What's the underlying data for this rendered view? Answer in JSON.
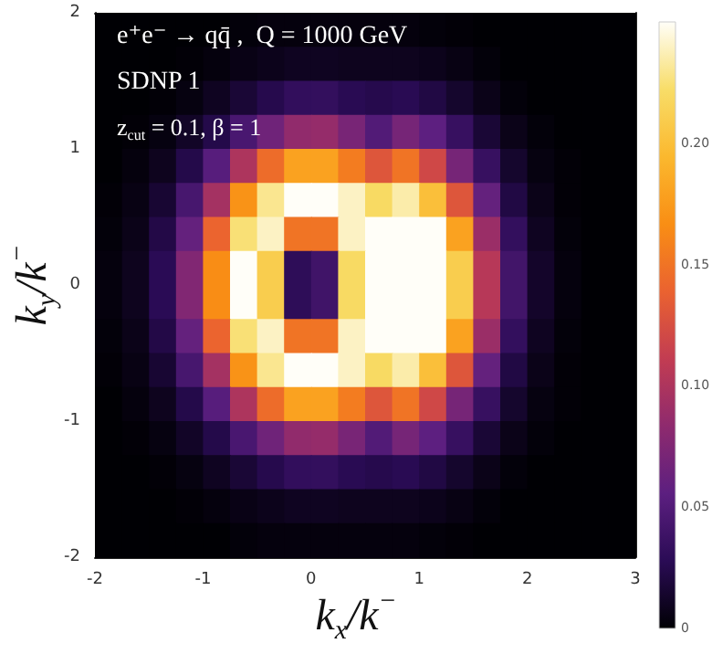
{
  "chart_data": {
    "type": "heatmap",
    "title": "e⁺e⁻ → qq̄ ,  Q = 1000 GeV",
    "subtitle": "SDNP 1",
    "annotations": [
      "z$_{cut}$ = 0.1, β = 1"
    ],
    "xlabel": "k$_{x}$/k$^{−}$",
    "ylabel": "k$_{y}$/k$^{−}$",
    "x": [
      -1.875,
      -1.625,
      -1.375,
      -1.125,
      -0.875,
      -0.625,
      -0.375,
      -0.125,
      0.125,
      0.375,
      0.625,
      0.875,
      1.125,
      1.375,
      1.625,
      1.875,
      2.125,
      2.375,
      2.625,
      2.875
    ],
    "y": [
      1.875,
      1.625,
      1.375,
      1.125,
      0.875,
      0.625,
      0.375,
      0.125,
      -0.125,
      -0.375,
      -0.625,
      -0.875,
      -1.125,
      -1.375,
      -1.625,
      -1.875
    ],
    "cells": [
      [
        0,
        0,
        0,
        0,
        0,
        0.002,
        0.003,
        0.003,
        0.003,
        0.003,
        0.003,
        0.003,
        0.002,
        0.001,
        0,
        0,
        0,
        0,
        0,
        0
      ],
      [
        0,
        0,
        0,
        0.001,
        0.003,
        0.006,
        0.008,
        0.01,
        0.01,
        0.009,
        0.009,
        0.009,
        0.008,
        0.005,
        0.002,
        0,
        0,
        0,
        0,
        0
      ],
      [
        0,
        0,
        0.001,
        0.004,
        0.01,
        0.017,
        0.025,
        0.032,
        0.033,
        0.027,
        0.025,
        0.027,
        0.022,
        0.014,
        0.007,
        0.002,
        0,
        0,
        0,
        0
      ],
      [
        0,
        0.001,
        0.004,
        0.012,
        0.024,
        0.045,
        0.066,
        0.085,
        0.087,
        0.071,
        0.05,
        0.07,
        0.056,
        0.035,
        0.017,
        0.007,
        0.002,
        0,
        0,
        0
      ],
      [
        0,
        0.003,
        0.009,
        0.024,
        0.053,
        0.1,
        0.145,
        0.18,
        0.18,
        0.155,
        0.13,
        0.15,
        0.12,
        0.07,
        0.035,
        0.014,
        0.004,
        0.001,
        0,
        0
      ],
      [
        0.001,
        0.005,
        0.016,
        0.044,
        0.095,
        0.17,
        0.23,
        0.25,
        0.25,
        0.24,
        0.22,
        0.235,
        0.2,
        0.13,
        0.06,
        0.022,
        0.007,
        0.001,
        0,
        0
      ],
      [
        0.002,
        0.007,
        0.023,
        0.06,
        0.14,
        0.225,
        0.24,
        0.15,
        0.15,
        0.24,
        0.25,
        0.25,
        0.25,
        0.18,
        0.09,
        0.033,
        0.01,
        0.002,
        0,
        0
      ],
      [
        0.003,
        0.009,
        0.028,
        0.076,
        0.166,
        0.25,
        0.21,
        0.03,
        0.04,
        0.22,
        0.25,
        0.25,
        0.25,
        0.21,
        0.105,
        0.041,
        0.013,
        0.003,
        0,
        0
      ],
      [
        0.003,
        0.009,
        0.028,
        0.076,
        0.166,
        0.25,
        0.21,
        0.03,
        0.04,
        0.22,
        0.25,
        0.25,
        0.25,
        0.21,
        0.105,
        0.041,
        0.013,
        0.003,
        0,
        0
      ],
      [
        0.002,
        0.007,
        0.023,
        0.06,
        0.14,
        0.225,
        0.24,
        0.15,
        0.15,
        0.24,
        0.25,
        0.25,
        0.25,
        0.18,
        0.09,
        0.033,
        0.01,
        0.002,
        0,
        0
      ],
      [
        0.001,
        0.005,
        0.016,
        0.044,
        0.095,
        0.17,
        0.23,
        0.25,
        0.25,
        0.24,
        0.22,
        0.235,
        0.2,
        0.13,
        0.06,
        0.022,
        0.007,
        0.001,
        0,
        0
      ],
      [
        0,
        0.003,
        0.009,
        0.024,
        0.053,
        0.1,
        0.145,
        0.18,
        0.18,
        0.155,
        0.13,
        0.15,
        0.12,
        0.07,
        0.035,
        0.014,
        0.004,
        0.001,
        0,
        0
      ],
      [
        0,
        0.001,
        0.004,
        0.012,
        0.024,
        0.045,
        0.066,
        0.085,
        0.087,
        0.071,
        0.05,
        0.07,
        0.056,
        0.035,
        0.017,
        0.007,
        0.002,
        0,
        0,
        0
      ],
      [
        0,
        0,
        0.001,
        0.004,
        0.01,
        0.017,
        0.025,
        0.032,
        0.033,
        0.027,
        0.025,
        0.027,
        0.022,
        0.014,
        0.007,
        0.002,
        0,
        0,
        0,
        0
      ],
      [
        0,
        0,
        0,
        0.001,
        0.003,
        0.006,
        0.008,
        0.01,
        0.01,
        0.009,
        0.009,
        0.009,
        0.008,
        0.005,
        0.002,
        0,
        0,
        0,
        0,
        0
      ],
      [
        0,
        0,
        0,
        0,
        0,
        0.002,
        0.003,
        0.003,
        0.003,
        0.003,
        0.003,
        0.003,
        0.002,
        0.001,
        0,
        0,
        0,
        0,
        0,
        0
      ]
    ],
    "xlim": [
      -2,
      3
    ],
    "xticks": [
      -2,
      -1,
      0,
      1,
      2,
      3
    ],
    "ylim": [
      -2,
      2
    ],
    "yticks": [
      -2,
      -1,
      0,
      1,
      2
    ],
    "clim": [
      0,
      0.25
    ],
    "cticks": [
      0,
      {
        "value": 0.05,
        "label": "0.05"
      },
      {
        "value": 0.1,
        "label": "0.10"
      },
      {
        "value": 0.15,
        "label": "0.15"
      },
      {
        "value": 0.2,
        "label": "0.20"
      }
    ]
  }
}
